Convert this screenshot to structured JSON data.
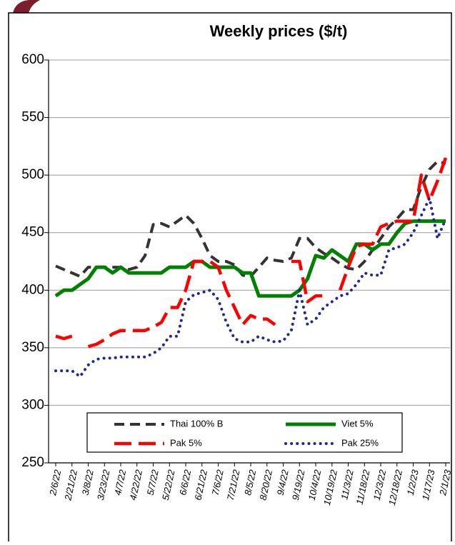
{
  "chart_data": {
    "type": "line",
    "title": "Weekly prices ($/t)",
    "categories": [
      "2/6/22",
      null,
      "2/21/22",
      null,
      "3/8/22",
      null,
      "3/23/22",
      null,
      "4/7/22",
      null,
      "4/22/22",
      null,
      "5/7/22",
      null,
      "5/22/22",
      null,
      "6/6/22",
      null,
      "6/21/22",
      null,
      "7/6/22",
      null,
      "7/21/22",
      null,
      "8/5/22",
      null,
      "8/20/22",
      null,
      "9/4/22",
      null,
      "9/19/22",
      null,
      "10/4/22",
      null,
      "10/19/22",
      null,
      "11/3/22",
      null,
      "11/18/22",
      null,
      "12/3/22",
      null,
      "12/18/22",
      null,
      "1/2/23",
      null,
      "1/17/23",
      null,
      "2/1/23"
    ],
    "series": [
      {
        "name": "Thai 100% B",
        "color": "#333333",
        "style": "dashed",
        "values": [
          421,
          418,
          415,
          412,
          420,
          420,
          420,
          420,
          420,
          418,
          420,
          430,
          457,
          458,
          455,
          460,
          465,
          458,
          445,
          430,
          425,
          425,
          422,
          413,
          412,
          420,
          428,
          426,
          425,
          428,
          445,
          445,
          437,
          432,
          428,
          423,
          419,
          418,
          425,
          435,
          445,
          455,
          462,
          470,
          470,
          490,
          505,
          512,
          510
        ]
      },
      {
        "name": "Viet 5%",
        "color": "#008000",
        "style": "solid",
        "values": [
          395,
          400,
          400,
          405,
          410,
          420,
          420,
          415,
          420,
          415,
          415,
          415,
          415,
          415,
          420,
          420,
          420,
          425,
          425,
          420,
          420,
          420,
          420,
          415,
          415,
          395,
          395,
          395,
          395,
          395,
          400,
          410,
          430,
          428,
          435,
          430,
          425,
          440,
          440,
          435,
          440,
          440,
          450,
          458,
          460,
          460,
          460,
          460,
          460
        ]
      },
      {
        "name": "Pak 5%",
        "color": "#ff0000",
        "style": "longdash",
        "values": [
          360,
          358,
          360,
          null,
          351,
          353,
          357,
          362,
          365,
          365,
          365,
          365,
          368,
          372,
          385,
          385,
          400,
          425,
          425,
          425,
          420,
          400,
          385,
          370,
          378,
          375,
          375,
          370,
          null,
          425,
          425,
          390,
          395,
          395,
          null,
          400,
          420,
          438,
          440,
          440,
          455,
          458,
          460,
          460,
          460,
          500,
          478,
          495,
          515
        ]
      },
      {
        "name": "Pak 25%",
        "color": "#1f2a8c",
        "style": "dotted",
        "values": [
          330,
          330,
          330,
          325,
          335,
          340,
          341,
          341,
          342,
          342,
          342,
          342,
          345,
          350,
          360,
          360,
          390,
          396,
          398,
          400,
          392,
          372,
          358,
          355,
          355,
          360,
          357,
          355,
          356,
          365,
          400,
          370,
          375,
          385,
          390,
          395,
          397,
          405,
          415,
          413,
          413,
          435,
          437,
          440,
          450,
          465,
          480,
          445,
          462
        ]
      }
    ],
    "ylim": [
      250,
      600
    ],
    "yticks": [
      250,
      300,
      350,
      400,
      450,
      500,
      550,
      600
    ],
    "grid": true,
    "legend": "bottom"
  }
}
